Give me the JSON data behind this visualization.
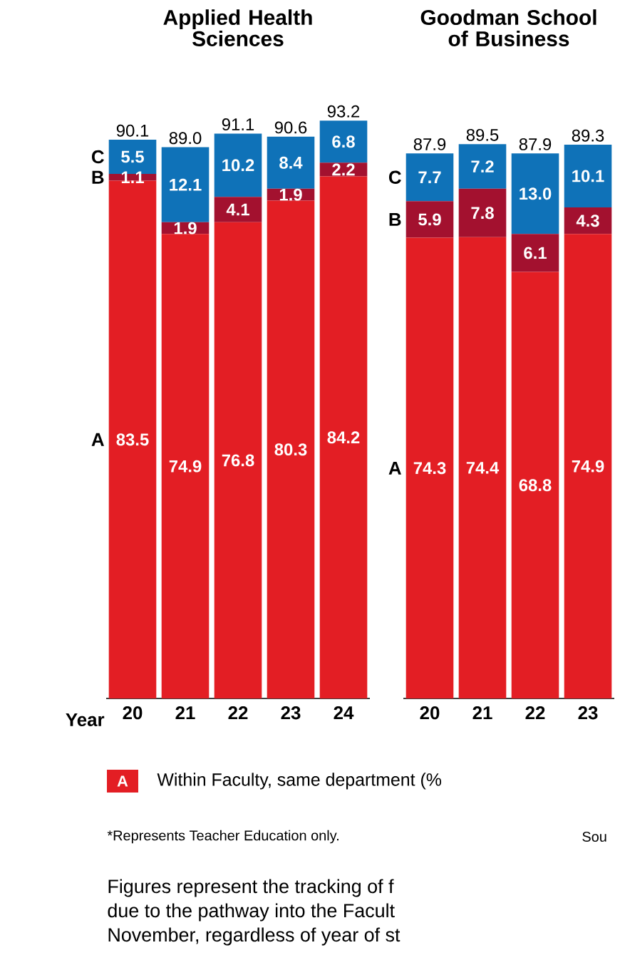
{
  "chart_data": [
    {
      "type": "bar",
      "stacked": true,
      "title": "Applied Health Sciences",
      "xlabel": "Year",
      "categories": [
        "20",
        "21",
        "22",
        "23",
        "24"
      ],
      "legend": "left",
      "series": [
        {
          "name": "A",
          "color": "#e31e24",
          "values": [
            83.5,
            74.9,
            76.8,
            80.3,
            84.2
          ],
          "value_labels": [
            "83.5",
            "74.9",
            "76.8",
            "80.3",
            "84.2"
          ]
        },
        {
          "name": "B",
          "color": "#a3112f",
          "values": [
            1.1,
            1.9,
            4.1,
            1.9,
            2.2
          ],
          "value_labels": [
            "1.1",
            "1.9",
            "4.1",
            "1.9",
            "2.2"
          ]
        },
        {
          "name": "C",
          "color": "#0f72b8",
          "values": [
            5.5,
            12.1,
            10.2,
            8.4,
            6.8
          ],
          "value_labels": [
            "5.5",
            "12.1",
            "10.2",
            "8.4",
            "6.8"
          ]
        }
      ],
      "totals": [
        "90.1",
        "89.0",
        "91.1",
        "90.6",
        "93.2"
      ],
      "annotations": [
        "Within Faculty, same department (%",
        "*Represents Teacher Education only.",
        "Sou",
        "Figures represent the tracking of f",
        "due to the pathway into the Facult",
        "November, regardless of year of st"
      ]
    },
    {
      "type": "bar",
      "stacked": true,
      "title": "Goodman School of Business",
      "categories": [
        "20",
        "21",
        "22",
        "23"
      ],
      "legend": "left",
      "series": [
        {
          "name": "A",
          "color": "#e31e24",
          "values": [
            74.3,
            74.4,
            68.8,
            74.9
          ],
          "value_labels": [
            "74.3",
            "74.4",
            "68.8",
            "74.9"
          ]
        },
        {
          "name": "B",
          "color": "#a3112f",
          "values": [
            5.9,
            7.8,
            6.1,
            4.3
          ],
          "value_labels": [
            "5.9",
            "7.8",
            "6.1",
            "4.3"
          ]
        },
        {
          "name": "C",
          "color": "#0f72b8",
          "values": [
            7.7,
            7.2,
            13.0,
            10.1
          ],
          "value_labels": [
            "7.7",
            "7.2",
            "13.0",
            "10.1"
          ]
        }
      ],
      "totals": [
        "87.9",
        "89.5",
        "87.9",
        "89.3"
      ]
    }
  ]
}
